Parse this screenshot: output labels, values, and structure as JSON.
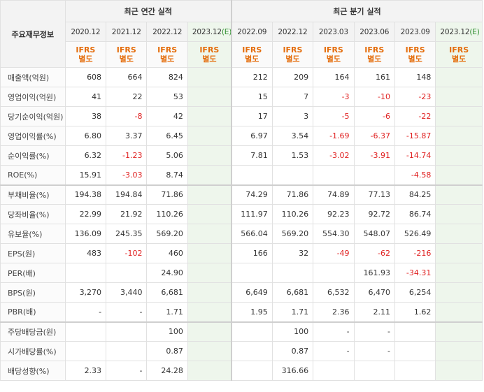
{
  "header": {
    "label_col": "주요재무정보",
    "annual_title": "최근 연간 실적",
    "quarter_title": "최근 분기 실적",
    "annual_periods": [
      "2020.12",
      "2021.12",
      "2022.12",
      "2023.12"
    ],
    "annual_est_mark": "(E)",
    "quarter_periods": [
      "2022.09",
      "2022.12",
      "2023.03",
      "2023.06",
      "2023.09",
      "2023.12"
    ],
    "quarter_est_mark": "(E)",
    "ifrs_line1": "IFRS",
    "ifrs_line2": "별도"
  },
  "rows": [
    {
      "label": "매출액(억원)",
      "annual": [
        "608",
        "664",
        "824",
        ""
      ],
      "quarter": [
        "212",
        "209",
        "164",
        "161",
        "148",
        ""
      ]
    },
    {
      "label": "영업이익(억원)",
      "annual": [
        "41",
        "22",
        "53",
        ""
      ],
      "quarter": [
        "15",
        "7",
        "-3",
        "-10",
        "-23",
        ""
      ]
    },
    {
      "label": "당기순이익(억원)",
      "annual": [
        "38",
        "-8",
        "42",
        ""
      ],
      "quarter": [
        "17",
        "3",
        "-5",
        "-6",
        "-22",
        ""
      ]
    },
    {
      "label": "영업이익률(%)",
      "annual": [
        "6.80",
        "3.37",
        "6.45",
        ""
      ],
      "quarter": [
        "6.97",
        "3.54",
        "-1.69",
        "-6.37",
        "-15.87",
        ""
      ]
    },
    {
      "label": "순이익률(%)",
      "annual": [
        "6.32",
        "-1.23",
        "5.06",
        ""
      ],
      "quarter": [
        "7.81",
        "1.53",
        "-3.02",
        "-3.91",
        "-14.74",
        ""
      ]
    },
    {
      "label": "ROE(%)",
      "annual": [
        "15.91",
        "-3.03",
        "8.74",
        ""
      ],
      "quarter": [
        "",
        "",
        "",
        "",
        "-4.58",
        ""
      ]
    },
    {
      "label": "부채비율(%)",
      "annual": [
        "194.38",
        "194.84",
        "71.86",
        ""
      ],
      "quarter": [
        "74.29",
        "71.86",
        "74.89",
        "77.13",
        "84.25",
        ""
      ]
    },
    {
      "label": "당좌비율(%)",
      "annual": [
        "22.99",
        "21.92",
        "110.26",
        ""
      ],
      "quarter": [
        "111.97",
        "110.26",
        "92.23",
        "92.72",
        "86.74",
        ""
      ]
    },
    {
      "label": "유보율(%)",
      "annual": [
        "136.09",
        "245.35",
        "569.20",
        ""
      ],
      "quarter": [
        "566.04",
        "569.20",
        "554.30",
        "548.07",
        "526.49",
        ""
      ]
    },
    {
      "label": "EPS(원)",
      "annual": [
        "483",
        "-102",
        "460",
        ""
      ],
      "quarter": [
        "166",
        "32",
        "-49",
        "-62",
        "-216",
        ""
      ]
    },
    {
      "label": "PER(배)",
      "annual": [
        "",
        "",
        "24.90",
        ""
      ],
      "quarter": [
        "",
        "",
        "",
        "161.93",
        "-34.31",
        ""
      ]
    },
    {
      "label": "BPS(원)",
      "annual": [
        "3,270",
        "3,440",
        "6,681",
        ""
      ],
      "quarter": [
        "6,649",
        "6,681",
        "6,532",
        "6,470",
        "6,254",
        ""
      ]
    },
    {
      "label": "PBR(배)",
      "annual": [
        "-",
        "-",
        "1.71",
        ""
      ],
      "quarter": [
        "1.95",
        "1.71",
        "2.36",
        "2.11",
        "1.62",
        ""
      ]
    },
    {
      "label": "주당배당금(원)",
      "annual": [
        "",
        "",
        "100",
        ""
      ],
      "quarter": [
        "",
        "100",
        "-",
        "-",
        "",
        ""
      ]
    },
    {
      "label": "시가배당률(%)",
      "annual": [
        "",
        "",
        "0.87",
        ""
      ],
      "quarter": [
        "",
        "0.87",
        "-",
        "-",
        "",
        ""
      ]
    },
    {
      "label": "배당성향(%)",
      "annual": [
        "2.33",
        "-",
        "24.28",
        ""
      ],
      "quarter": [
        "",
        "316.66",
        "",
        "",
        "",
        ""
      ]
    }
  ],
  "colors": {
    "negative": "#e02020",
    "ifrs": "#e46c0a",
    "estimate_bg": "#eef6ec",
    "estimate_mark": "#2f8f2f"
  }
}
